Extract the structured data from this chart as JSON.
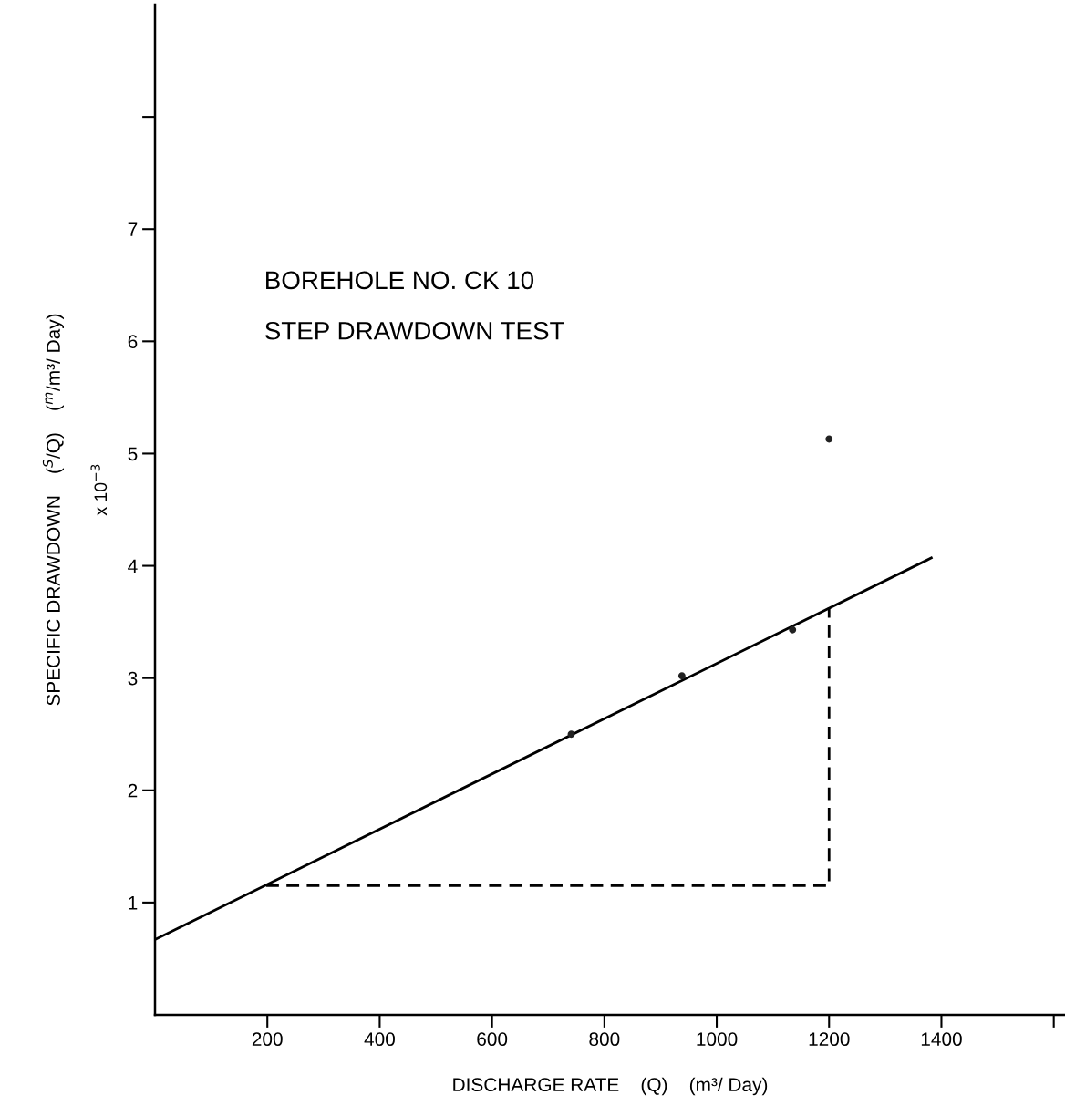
{
  "chart_data": {
    "type": "scatter",
    "xlabel": "DISCHARGE RATE    (Q)    (m³/ Day)",
    "ylabel": "SPECIFIC DRAWDOWN    ($^{S}$/Q)    ($^{m}$/m³/ Day)",
    "annotations": [
      "BOREHOLE NO. CK 10",
      "STEP DRAWDOWN TEST",
      "x 10$^{−3}$"
    ],
    "xlim": [
      0,
      1620
    ],
    "ylim": [
      0,
      9
    ],
    "xticks": [
      200,
      400,
      600,
      800,
      1000,
      1200,
      1400,
      {
        "value": 1600,
        "label": null
      }
    ],
    "yticks": [
      1,
      2,
      3,
      4,
      5,
      6,
      7,
      {
        "value": 8,
        "label": null
      }
    ],
    "grid": false,
    "legend": false,
    "series": [
      {
        "color": "#222222",
        "marker": "circle",
        "x": [
          741,
          938,
          1135,
          1200
        ],
        "values": [
          2.5,
          3.02,
          3.43,
          5.13
        ]
      },
      {
        "type": "line",
        "color": "#000000",
        "line_style": "solid",
        "marker": "none",
        "x": [
          0,
          1382
        ],
        "values": [
          0.67,
          4.07
        ]
      },
      {
        "type": "line",
        "color": "#000000",
        "line_style": "dashed",
        "marker": "none",
        "x": [
          198,
          1200,
          1200
        ],
        "values": [
          1.15,
          1.15,
          3.63
        ]
      }
    ]
  }
}
